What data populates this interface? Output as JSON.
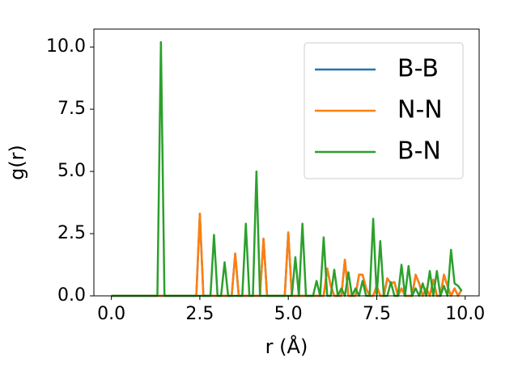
{
  "chart_data": {
    "type": "line",
    "xlabel": "r (Å)",
    "ylabel": "g(r)",
    "x": [
      0,
      0.1,
      0.2,
      0.3,
      0.4,
      0.5,
      0.6,
      0.7,
      0.8,
      0.9,
      1,
      1.1,
      1.2,
      1.3,
      1.4,
      1.5,
      1.6,
      1.7,
      1.8,
      1.9,
      2,
      2.1,
      2.2,
      2.3,
      2.4,
      2.5,
      2.6,
      2.7,
      2.8,
      2.9,
      3,
      3.1,
      3.2,
      3.3,
      3.4,
      3.5,
      3.6,
      3.7,
      3.8,
      3.9,
      4,
      4.1,
      4.2,
      4.3,
      4.4,
      4.5,
      4.6,
      4.7,
      4.8,
      4.9,
      5,
      5.1,
      5.2,
      5.3,
      5.4,
      5.5,
      5.6,
      5.7,
      5.8,
      5.9,
      6,
      6.1,
      6.2,
      6.3,
      6.4,
      6.5,
      6.6,
      6.7,
      6.8,
      6.9,
      7,
      7.1,
      7.2,
      7.3,
      7.4,
      7.5,
      7.6,
      7.7,
      7.8,
      7.9,
      8,
      8.1,
      8.2,
      8.3,
      8.4,
      8.5,
      8.6,
      8.7,
      8.8,
      8.9,
      9,
      9.1,
      9.2,
      9.3,
      9.4,
      9.5,
      9.6,
      9.7,
      9.8,
      9.9
    ],
    "series": [
      {
        "name": "B-B",
        "color": "#1f77b4",
        "values": [
          0,
          0,
          0,
          0,
          0,
          0,
          0,
          0,
          0,
          0,
          0,
          0,
          0,
          0,
          0,
          0,
          0,
          0,
          0,
          0,
          0,
          0,
          0,
          0,
          0,
          3.3,
          0,
          0,
          0,
          0,
          0,
          0,
          0,
          0,
          0,
          1.7,
          0,
          0,
          0,
          0,
          0,
          0,
          0,
          2.3,
          0,
          0,
          0,
          0,
          0,
          0,
          2.55,
          0,
          0,
          0,
          0,
          0,
          0,
          0,
          0,
          0,
          0,
          1.1,
          0.4,
          0,
          0,
          0,
          1.45,
          0,
          0,
          0,
          0.85,
          0.85,
          0.3,
          0,
          0,
          0.4,
          0,
          0,
          0.7,
          0.5,
          0.55,
          0,
          0.3,
          0,
          0,
          0,
          0.85,
          0.5,
          0,
          0.3,
          0,
          0.65,
          0,
          0,
          0.85,
          0.4,
          0,
          0.3,
          0,
          0.25
        ]
      },
      {
        "name": "N-N",
        "color": "#ff7f0e",
        "values": [
          0,
          0,
          0,
          0,
          0,
          0,
          0,
          0,
          0,
          0,
          0,
          0,
          0,
          0,
          0,
          0,
          0,
          0,
          0,
          0,
          0,
          0,
          0,
          0,
          0,
          3.3,
          0,
          0,
          0,
          0,
          0,
          0,
          0,
          0,
          0,
          1.7,
          0,
          0,
          0,
          0,
          0,
          0,
          0,
          2.3,
          0,
          0,
          0,
          0,
          0,
          0,
          2.55,
          0,
          0,
          0,
          0,
          0,
          0,
          0,
          0,
          0,
          0,
          1.1,
          0.4,
          0,
          0,
          0,
          1.45,
          0,
          0,
          0,
          0.85,
          0.85,
          0.3,
          0,
          0,
          0.4,
          0,
          0,
          0.7,
          0.5,
          0.55,
          0,
          0.3,
          0,
          0,
          0,
          0.85,
          0.5,
          0,
          0.3,
          0,
          0.65,
          0,
          0,
          0.85,
          0.4,
          0,
          0.3,
          0,
          0.25
        ]
      },
      {
        "name": "B-N",
        "color": "#2ca02c",
        "values": [
          0,
          0,
          0,
          0,
          0,
          0,
          0,
          0,
          0,
          0,
          0,
          0,
          0,
          0,
          10.2,
          0,
          0,
          0,
          0,
          0,
          0,
          0,
          0,
          0,
          0,
          0,
          0,
          0,
          0,
          2.45,
          0,
          0,
          1.35,
          0,
          0,
          0,
          0,
          0,
          2.9,
          0,
          0,
          5,
          0,
          0,
          0,
          0,
          0,
          0,
          0,
          0,
          0,
          0,
          1.55,
          0,
          2.9,
          0,
          0,
          0,
          0.6,
          0,
          2.35,
          0,
          0,
          1.05,
          0,
          0.3,
          0,
          0.95,
          0,
          0.3,
          0,
          0.6,
          0,
          0,
          3.1,
          0,
          2.2,
          0,
          0,
          0.55,
          0,
          0,
          1.25,
          0,
          1.2,
          0,
          0.3,
          0,
          0.5,
          0,
          1,
          0,
          1,
          0,
          0.4,
          0,
          1.85,
          0.5,
          0.4,
          0.2
        ]
      }
    ],
    "xlim": [
      -0.495,
      10.395
    ],
    "xticks": [
      {
        "value": 0,
        "label": "0.0"
      },
      2.5,
      {
        "value": 5,
        "label": "5.0"
      },
      7.5,
      {
        "value": 10,
        "label": "10.0"
      }
    ],
    "ylim": [
      0,
      10.72
    ],
    "yticks": [
      {
        "value": 0,
        "label": "0.0"
      },
      2.5,
      {
        "value": 5,
        "label": "5.0"
      },
      7.5,
      {
        "value": 10,
        "label": "10.0"
      }
    ],
    "legend": "upper right"
  }
}
